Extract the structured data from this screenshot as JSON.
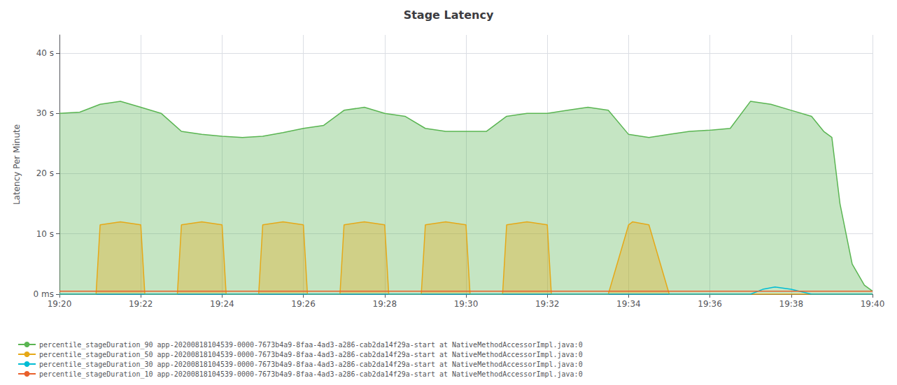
{
  "chart_data": {
    "type": "line",
    "title": "Stage Latency",
    "ylabel": "Latency Per Minute",
    "xlim": [
      0,
      20
    ],
    "xticks": [
      {
        "value": 0,
        "label": "19:20"
      },
      {
        "value": 2,
        "label": "19:22"
      },
      {
        "value": 4,
        "label": "19:24"
      },
      {
        "value": 6,
        "label": "19:26"
      },
      {
        "value": 8,
        "label": "19:28"
      },
      {
        "value": 10,
        "label": "19:30"
      },
      {
        "value": 12,
        "label": "19:32"
      },
      {
        "value": 14,
        "label": "19:34"
      },
      {
        "value": 16,
        "label": "19:36"
      },
      {
        "value": 18,
        "label": "19:38"
      },
      {
        "value": 20,
        "label": "19:40"
      }
    ],
    "ylim": [
      0,
      43
    ],
    "yticks": [
      {
        "value": 0,
        "label": "0 ms"
      },
      {
        "value": 10,
        "label": "10 s"
      },
      {
        "value": 20,
        "label": "20 s"
      },
      {
        "value": 30,
        "label": "30 s"
      },
      {
        "value": 40,
        "label": "40 s"
      }
    ],
    "grid": true,
    "legend": "bottom",
    "series": [
      {
        "name": "percentile_stageDuration_90 app-20200818104539-0000-7673b4a9-8faa-4ad3-a286-cab2da14f29a-start at NativeMethodAccessorImpl.java:0",
        "type": "area",
        "color": "#5ab552",
        "x": [
          0,
          0.5,
          1.0,
          1.5,
          2.0,
          2.5,
          3.0,
          3.5,
          4.0,
          4.5,
          5.0,
          5.5,
          6.0,
          6.5,
          7.0,
          7.5,
          8.0,
          8.5,
          9.0,
          9.5,
          10.0,
          10.5,
          11.0,
          11.5,
          12.0,
          12.5,
          13.0,
          13.5,
          14.0,
          14.5,
          15.0,
          15.5,
          16.0,
          16.5,
          17.0,
          17.5,
          18.0,
          18.5,
          18.8,
          19.0,
          19.2,
          19.5,
          19.8,
          20.0
        ],
        "values": [
          30.0,
          30.2,
          31.5,
          32.0,
          31.0,
          30.0,
          27.0,
          26.5,
          26.2,
          26.0,
          26.2,
          26.8,
          27.5,
          28.0,
          30.5,
          31.0,
          30.0,
          29.5,
          27.5,
          27.0,
          27.0,
          27.0,
          29.5,
          30.0,
          30.0,
          30.5,
          31.0,
          30.5,
          26.5,
          26.0,
          26.5,
          27.0,
          27.2,
          27.5,
          32.0,
          31.5,
          30.5,
          29.5,
          27.0,
          26.0,
          15.0,
          5.0,
          1.5,
          0.5
        ]
      },
      {
        "name": "percentile_stageDuration_50 app-20200818104539-0000-7673b4a9-8faa-4ad3-a286-cab2da14f29a-start at NativeMethodAccessorImpl.java:0",
        "type": "area",
        "color": "#e6a817",
        "x": [
          0,
          0.9,
          1.0,
          1.5,
          2.0,
          2.1,
          2.5,
          2.9,
          3.0,
          3.5,
          4.0,
          4.1,
          4.5,
          4.9,
          5.0,
          5.5,
          6.0,
          6.1,
          6.5,
          6.9,
          7.0,
          7.5,
          8.0,
          8.1,
          8.5,
          8.9,
          9.0,
          9.5,
          10.0,
          10.1,
          10.5,
          10.9,
          11.0,
          11.5,
          12.0,
          12.1,
          12.5,
          13.5,
          14.0,
          14.1,
          14.5,
          15.0,
          15.5,
          16.0,
          16.5,
          17.0,
          17.5,
          18.0,
          19.0,
          20.0
        ],
        "values": [
          0,
          0,
          11.5,
          12.0,
          11.5,
          0,
          0,
          0,
          11.5,
          12.0,
          11.5,
          0,
          0,
          0,
          11.5,
          12.0,
          11.5,
          0,
          0,
          0,
          11.5,
          12.0,
          11.5,
          0,
          0,
          0,
          11.5,
          12.0,
          11.5,
          0,
          0,
          0,
          11.5,
          12.0,
          11.5,
          0,
          0,
          0,
          11.5,
          12.0,
          11.5,
          0,
          0,
          0,
          0,
          0,
          0,
          0,
          0,
          0
        ]
      },
      {
        "name": "percentile_stageDuration_30 app-20200818104539-0000-7673b4a9-8faa-4ad3-a286-cab2da14f29a-start at NativeMethodAccessorImpl.java:0",
        "type": "line",
        "color": "#00bcd4",
        "x": [
          0,
          17.0,
          17.3,
          17.6,
          18.0,
          18.5,
          19.0,
          20.0
        ],
        "values": [
          0,
          0,
          0.8,
          1.2,
          0.8,
          0,
          0,
          0
        ]
      },
      {
        "name": "percentile_stageDuration_10 app-20200818104539-0000-7673b4a9-8faa-4ad3-a286-cab2da14f29a-start at NativeMethodAccessorImpl.java:0",
        "type": "line",
        "color": "#e8602c",
        "x": [
          0,
          20
        ],
        "values": [
          0.5,
          0.5
        ]
      }
    ]
  }
}
